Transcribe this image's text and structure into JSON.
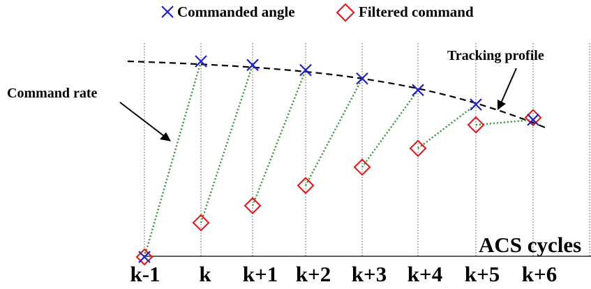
{
  "legend": {
    "commanded_angle": "Commanded angle",
    "filtered_command": "Filtered command"
  },
  "annotations": {
    "tracking_profile": "Tracking profile",
    "command_rate": "Command rate"
  },
  "axis": {
    "title": "ACS cycles",
    "ticks": [
      "k-1",
      "k",
      "k+1",
      "k+2",
      "k+3",
      "k+4",
      "k+5",
      "k+6"
    ]
  },
  "colors": {
    "commanded_marker": "#1f1fd6",
    "filtered_marker": "#ee1111",
    "rate_line": "#2a9a2a",
    "profile_line": "#000000"
  },
  "series": {
    "commanded_angle": [
      0,
      1,
      0.981,
      0.955,
      0.912,
      0.853,
      0.779,
      0.701
    ],
    "filtered_command": [
      0,
      0.175,
      0.262,
      0.365,
      0.459,
      0.555,
      0.675,
      0.712
    ]
  }
}
